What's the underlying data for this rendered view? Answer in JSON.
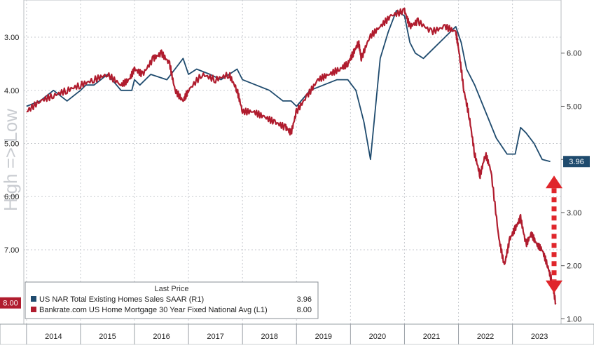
{
  "chart_data": {
    "type": "line",
    "title": "",
    "side_label": "High => Low",
    "left_axis": {
      "inverted": true,
      "ticks": [
        "3.00",
        "4.00",
        "5.00",
        "6.00",
        "7.00"
      ],
      "range": [
        2.3,
        8.4
      ],
      "last_value_label": "8.00"
    },
    "right_axis": {
      "ticks": [
        "6.00",
        "5.00",
        "4.00",
        "3.00",
        "2.00",
        "1.00"
      ],
      "range": [
        0.9,
        7.0
      ],
      "last_value_label": "3.96"
    },
    "x_axis": {
      "tick_labels": [
        "2014",
        "2015",
        "2016",
        "2017",
        "2018",
        "2019",
        "2020",
        "2021",
        "2022",
        "2023"
      ],
      "range": [
        2013.95,
        2023.9
      ]
    },
    "grid": true,
    "legend": {
      "position": "bottom-left",
      "header": "Last Price",
      "entries": [
        {
          "label": "US NAR Total Existing Homes Sales SAAR (R1)",
          "value": "3.96",
          "color": "#1f4b6e"
        },
        {
          "label": "Bankrate.com US Home Mortgage 30 Year Fixed National Avg (L1)",
          "value": "8.00",
          "color": "#b01c2e"
        }
      ]
    },
    "series": [
      {
        "name": "US NAR Total Existing Homes Sales SAAR (R1)",
        "axis": "right",
        "color": "#1f4b6e",
        "x": [
          2014.0,
          2014.25,
          2014.5,
          2014.75,
          2015.0,
          2015.1,
          2015.25,
          2015.5,
          2015.75,
          2015.95,
          2016.0,
          2016.1,
          2016.3,
          2016.6,
          2016.9,
          2017.0,
          2017.15,
          2017.4,
          2017.6,
          2017.9,
          2018.0,
          2018.25,
          2018.5,
          2018.75,
          2018.9,
          2019.0,
          2019.25,
          2019.5,
          2019.75,
          2019.95,
          2020.1,
          2020.25,
          2020.37,
          2020.55,
          2020.7,
          2020.85,
          2021.0,
          2021.1,
          2021.2,
          2021.35,
          2021.55,
          2021.75,
          2021.95,
          2022.05,
          2022.15,
          2022.3,
          2022.5,
          2022.7,
          2022.9,
          2023.05,
          2023.15,
          2023.25,
          2023.4,
          2023.55,
          2023.7
        ],
        "y": [
          5.0,
          5.1,
          5.3,
          5.1,
          5.3,
          5.4,
          5.4,
          5.6,
          5.3,
          5.3,
          5.5,
          5.4,
          5.6,
          5.5,
          5.9,
          5.6,
          5.7,
          5.6,
          5.5,
          5.7,
          5.5,
          5.4,
          5.3,
          5.1,
          5.1,
          5.0,
          5.3,
          5.4,
          5.5,
          5.5,
          5.3,
          4.7,
          4.0,
          5.9,
          6.4,
          6.8,
          6.7,
          6.2,
          6.0,
          5.9,
          6.1,
          6.3,
          6.5,
          6.2,
          5.7,
          5.4,
          4.9,
          4.4,
          4.1,
          4.1,
          4.6,
          4.5,
          4.3,
          4.0,
          3.96
        ]
      },
      {
        "name": "Bankrate.com US Home Mortgage 30 Year Fixed National Avg (L1)",
        "axis": "left",
        "color": "#b01c2e",
        "x": [
          2014.0,
          2014.25,
          2014.5,
          2014.75,
          2015.0,
          2015.25,
          2015.5,
          2015.75,
          2015.9,
          2016.0,
          2016.15,
          2016.35,
          2016.5,
          2016.65,
          2016.75,
          2016.9,
          2017.0,
          2017.25,
          2017.5,
          2017.75,
          2017.9,
          2018.0,
          2018.2,
          2018.4,
          2018.6,
          2018.8,
          2018.9,
          2019.0,
          2019.2,
          2019.4,
          2019.6,
          2019.8,
          2019.95,
          2020.05,
          2020.15,
          2020.2,
          2020.35,
          2020.55,
          2020.75,
          2021.0,
          2021.1,
          2021.25,
          2021.5,
          2021.75,
          2021.95,
          2022.0,
          2022.1,
          2022.2,
          2022.3,
          2022.4,
          2022.5,
          2022.6,
          2022.75,
          2022.85,
          2022.95,
          2023.05,
          2023.15,
          2023.25,
          2023.35,
          2023.45,
          2023.55,
          2023.65,
          2023.73,
          2023.8
        ],
        "y": [
          4.4,
          4.2,
          4.1,
          4.0,
          3.9,
          3.8,
          3.7,
          3.9,
          3.8,
          3.6,
          3.7,
          3.4,
          3.3,
          3.5,
          4.0,
          4.2,
          4.0,
          3.7,
          3.8,
          3.7,
          4.0,
          4.4,
          4.4,
          4.5,
          4.6,
          4.7,
          4.8,
          4.4,
          4.1,
          3.8,
          3.7,
          3.6,
          3.5,
          3.3,
          3.1,
          3.4,
          3.0,
          2.8,
          2.6,
          2.5,
          2.8,
          2.7,
          2.9,
          2.8,
          2.9,
          3.2,
          4.0,
          4.5,
          5.2,
          5.6,
          5.2,
          5.5,
          6.8,
          7.3,
          6.8,
          6.6,
          6.4,
          6.9,
          6.7,
          6.9,
          7.0,
          7.3,
          7.6,
          8.0
        ]
      }
    ],
    "annotations": [
      {
        "type": "double-arrow",
        "style": "dashed",
        "color": "#e0262b"
      }
    ]
  }
}
